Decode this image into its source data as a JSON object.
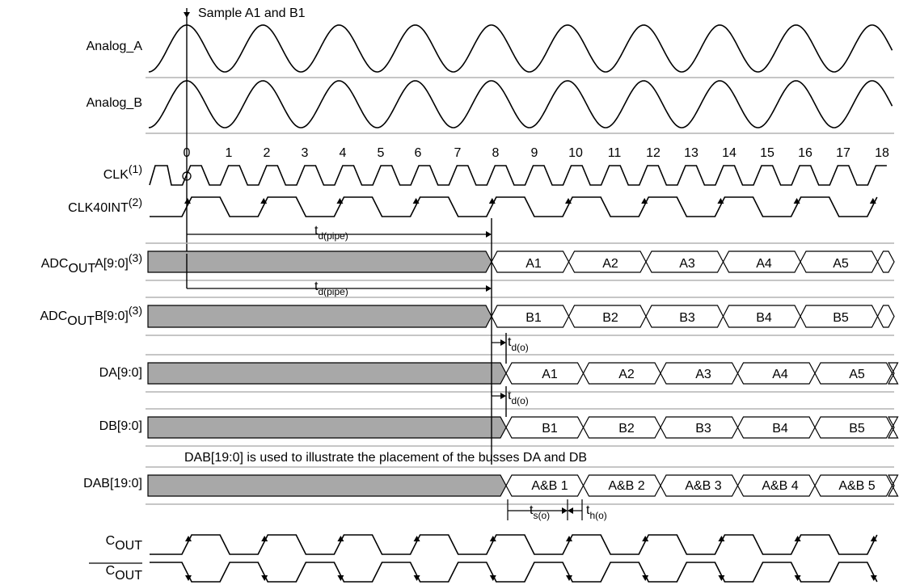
{
  "signals": {
    "analog_a": "Analog_A",
    "analog_b": "Analog_B",
    "clk_main": "CLK",
    "clk_note": "(1)",
    "clk40_main": "CLK40INT",
    "clk40_note": "(2)",
    "adc_a_pre": "ADC",
    "adc_a_sub": "OUT",
    "adc_a_post": "A[9:0]",
    "adc_a_note": "(3)",
    "adc_b_pre": "ADC",
    "adc_b_sub": "OUT",
    "adc_b_post": "B[9:0]",
    "adc_b_note": "(3)",
    "da": "DA[9:0]",
    "db": "DB[9:0]",
    "dab": "DAB[19:0]",
    "cout_main": "C",
    "cout_sub": "OUT",
    "coutbar_main": "C",
    "coutbar_sub": "OUT"
  },
  "clock_ticks": [
    "0",
    "1",
    "2",
    "3",
    "4",
    "5",
    "6",
    "7",
    "8",
    "9",
    "10",
    "11",
    "12",
    "13",
    "14",
    "15",
    "16",
    "17",
    "18"
  ],
  "annotations": {
    "sample": "Sample A1 and B1",
    "dab_note": "DAB[19:0] is used to illustrate the placement of the busses DA and DB",
    "t_dpipe_a_main": "t",
    "t_dpipe_a_sub": "d(pipe)",
    "t_dpipe_b_main": "t",
    "t_dpipe_b_sub": "d(pipe)",
    "t_do_a_main": "t",
    "t_do_a_sub": "d(o)",
    "t_do_b_main": "t",
    "t_do_b_sub": "d(o)",
    "t_so_main": "t",
    "t_so_sub": "s(o)",
    "t_ho_main": "t",
    "t_ho_sub": "h(o)"
  },
  "buses": {
    "adc_a": [
      "A1",
      "A2",
      "A3",
      "A4",
      "A5"
    ],
    "adc_b": [
      "B1",
      "B2",
      "B3",
      "B4",
      "B5"
    ],
    "da": [
      "A1",
      "A2",
      "A3",
      "A4",
      "A5"
    ],
    "db": [
      "B1",
      "B2",
      "B3",
      "B4",
      "B5"
    ],
    "dab": [
      "A&B 1",
      "A&B 2",
      "A&B 3",
      "A&B 4",
      "A&B 5"
    ]
  },
  "colors": {
    "invalid_fill": "#a8a8a8",
    "guide": "#b4b4b4",
    "ink": "#000000"
  }
}
